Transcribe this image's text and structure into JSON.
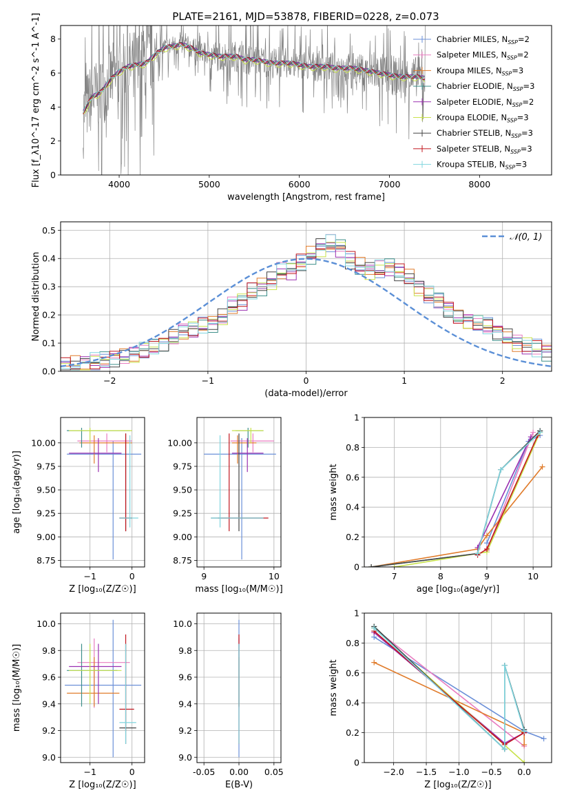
{
  "figure": {
    "title": "PLATE=2161, MJD=53878, FIBERID=0228, z=0.073"
  },
  "models": [
    {
      "name": "Chabrier MILES, N$_{SSP}$=2",
      "label": "Chabrier MILES, N",
      "sub": "SSP",
      "tail": "=2",
      "color": "#6a8fd8"
    },
    {
      "name": "Salpeter MILES, N$_{SSP}$=2",
      "label": "Salpeter MILES, N",
      "sub": "SSP",
      "tail": "=2",
      "color": "#e87bc0"
    },
    {
      "name": "Kroupa MILES, N$_{SSP}$=3",
      "label": "Kroupa MILES, N",
      "sub": "SSP",
      "tail": "=3",
      "color": "#e07b2a"
    },
    {
      "name": "Chabrier ELODIE, N$_{SSP}$=3",
      "label": "Chabrier ELODIE, N",
      "sub": "SSP",
      "tail": "=3",
      "color": "#3d8f8a"
    },
    {
      "name": "Salpeter ELODIE, N$_{SSP}$=2",
      "label": "Salpeter ELODIE, N",
      "sub": "SSP",
      "tail": "=2",
      "color": "#9a2fb0"
    },
    {
      "name": "Kroupa ELODIE, N$_{SSP}$=3",
      "label": "Kroupa ELODIE, N",
      "sub": "SSP",
      "tail": "=3",
      "color": "#c8e24a"
    },
    {
      "name": "Chabrier STELIB, N$_{SSP}$=3",
      "label": "Chabrier STELIB, N",
      "sub": "SSP",
      "tail": "=3",
      "color": "#444444"
    },
    {
      "name": "Salpeter STELIB, N$_{SSP}$=3",
      "label": "Salpeter STELIB, N",
      "sub": "SSP",
      "tail": "=3",
      "color": "#c0141c"
    },
    {
      "name": "Kroupa STELIB, N$_{SSP}$=3",
      "label": "Kroupa STELIB, N",
      "sub": "SSP",
      "tail": "=3",
      "color": "#7fd4de"
    }
  ],
  "chart_data": [
    {
      "id": "spectrum",
      "type": "line",
      "xlabel": "wavelength [Angstrom, rest frame]",
      "ylabel": "Flux [f_λ10^-17 erg cm^-2 s^-1 A^-1]",
      "xlim": [
        3350,
        8800
      ],
      "ylim": [
        0,
        8.8
      ],
      "xticks": [
        4000,
        5000,
        6000,
        7000,
        8000
      ],
      "yticks": [
        0,
        2,
        4,
        6,
        8
      ],
      "grid": false,
      "legend": "top-right",
      "data_color": "#808080",
      "x": [
        3600,
        3700,
        3800,
        3900,
        4000,
        4100,
        4200,
        4300,
        4400,
        4500,
        4600,
        4700,
        4800,
        4900,
        5000,
        5100,
        5200,
        5300,
        5400,
        5500,
        5600,
        5700,
        5800,
        5900,
        6000,
        6100,
        6200,
        6300,
        6400,
        6500,
        6600,
        6700,
        6800,
        6900,
        7000,
        7100,
        7200,
        7300,
        7400
      ],
      "model_flux": [
        3.7,
        4.6,
        4.9,
        5.6,
        6.1,
        6.4,
        6.5,
        6.6,
        7.1,
        7.5,
        7.6,
        7.7,
        7.5,
        7.2,
        7.1,
        7.0,
        7.0,
        7.0,
        6.8,
        6.8,
        6.7,
        6.6,
        6.6,
        6.6,
        6.5,
        6.4,
        6.4,
        6.4,
        6.3,
        6.3,
        6.3,
        6.2,
        6.1,
        6.0,
        5.9,
        5.8,
        5.8,
        5.8,
        5.7
      ]
    },
    {
      "id": "residuals",
      "type": "step",
      "xlabel": "(data-model)/error",
      "ylabel": "Normed distribution",
      "xlim": [
        -2.5,
        2.5
      ],
      "ylim": [
        0,
        0.53
      ],
      "xticks": [
        -2,
        -1,
        0,
        1,
        2
      ],
      "yticks": [
        0.0,
        0.1,
        0.2,
        0.3,
        0.4,
        0.5
      ],
      "grid": true,
      "legend": "top-right",
      "gaussian_label": "𝒩(0, 1)",
      "gaussian_color": "#5b8fd6",
      "bin_width": 0.1,
      "bin_start": -2.5,
      "density": [
        0.018,
        0.022,
        0.028,
        0.033,
        0.038,
        0.047,
        0.052,
        0.06,
        0.075,
        0.085,
        0.1,
        0.12,
        0.14,
        0.15,
        0.16,
        0.17,
        0.19,
        0.23,
        0.25,
        0.28,
        0.3,
        0.32,
        0.35,
        0.36,
        0.38,
        0.41,
        0.44,
        0.45,
        0.44,
        0.39,
        0.37,
        0.36,
        0.36,
        0.37,
        0.35,
        0.33,
        0.3,
        0.27,
        0.25,
        0.22,
        0.19,
        0.18,
        0.17,
        0.16,
        0.14,
        0.12,
        0.1,
        0.09,
        0.08,
        0.07,
        0.06,
        0.05,
        0.045,
        0.04,
        0.037,
        0.033,
        0.03,
        0.028,
        0.026,
        0.024
      ]
    },
    {
      "id": "age_vs_Z",
      "type": "errorbar",
      "xlabel": "Z [log₁₀(Z/Z☉)]",
      "ylabel": "age  [log₁₀(age/yr)]",
      "xlim": [
        -1.7,
        0.3
      ],
      "ylim": [
        8.68,
        10.27
      ],
      "xticks": [
        -1,
        0
      ],
      "yticks": [
        8.75,
        9.0,
        9.25,
        9.5,
        9.75,
        10.0
      ],
      "yticklabels": [
        "8.75",
        "9.00",
        "9.25",
        "9.50",
        "9.75",
        "10.00"
      ],
      "grid": true,
      "points": [
        {
          "m": 0,
          "x": -0.45,
          "y": 9.88,
          "xe": [
            -1.55,
            0.22
          ],
          "ye": [
            8.76,
            10.02
          ]
        },
        {
          "m": 1,
          "x": -0.6,
          "y": 10.02,
          "xe": [
            -1.3,
            0.0
          ],
          "ye": [
            9.9,
            10.1
          ]
        },
        {
          "m": 2,
          "x": -0.9,
          "y": 10.0,
          "xe": [
            -1.25,
            0.0
          ],
          "ye": [
            9.78,
            10.08
          ]
        },
        {
          "m": 3,
          "x": -1.2,
          "y": 10.13,
          "xe": [
            -1.55,
            -0.05
          ],
          "ye": [
            9.95,
            10.16
          ]
        },
        {
          "m": 4,
          "x": -0.8,
          "y": 9.89,
          "xe": [
            -1.5,
            -0.25
          ],
          "ye": [
            9.69,
            10.05
          ]
        },
        {
          "m": 5,
          "x": -1.0,
          "y": 10.13,
          "xe": [
            -1.5,
            0.0
          ],
          "ye": [
            10.0,
            10.16
          ]
        },
        {
          "m": 6,
          "x": -0.15,
          "y": 9.2,
          "xe": [
            -0.3,
            0.0
          ],
          "ye": [
            9.06,
            10.1
          ]
        },
        {
          "m": 7,
          "x": -0.15,
          "y": 9.2,
          "xe": [
            -0.3,
            0.0
          ],
          "ye": [
            9.06,
            10.1
          ]
        },
        {
          "m": 8,
          "x": -0.05,
          "y": 9.2,
          "xe": [
            -0.3,
            0.15
          ],
          "ye": [
            9.1,
            10.08
          ]
        }
      ]
    },
    {
      "id": "age_vs_mass",
      "type": "errorbar",
      "xlabel": "mass [log₁₀(M/M☉)]",
      "ylabel": "",
      "xlim": [
        8.9,
        10.1
      ],
      "ylim": [
        8.68,
        10.27
      ],
      "xticks": [
        9,
        10
      ],
      "yticks": [
        8.75,
        9.0,
        9.25,
        9.5,
        9.75,
        10.0
      ],
      "yticklabels": [
        "8.75",
        "9.00",
        "9.25",
        "9.50",
        "9.75",
        "10.00"
      ],
      "grid": true,
      "points": [
        {
          "m": 0,
          "x": 9.54,
          "y": 9.88,
          "xe": [
            9.0,
            10.03
          ],
          "ye": [
            8.76,
            10.05
          ]
        },
        {
          "m": 1,
          "x": 9.7,
          "y": 10.02,
          "xe": [
            9.38,
            10.0
          ],
          "ye": [
            9.9,
            10.1
          ]
        },
        {
          "m": 2,
          "x": 9.48,
          "y": 10.0,
          "xe": [
            9.4,
            9.75
          ],
          "ye": [
            9.78,
            10.08
          ]
        },
        {
          "m": 3,
          "x": 9.63,
          "y": 10.13,
          "xe": [
            9.45,
            9.85
          ],
          "ye": [
            9.95,
            10.16
          ]
        },
        {
          "m": 4,
          "x": 9.62,
          "y": 9.89,
          "xe": [
            9.4,
            9.85
          ],
          "ye": [
            9.69,
            10.05
          ]
        },
        {
          "m": 5,
          "x": 9.67,
          "y": 10.13,
          "xe": [
            9.4,
            9.85
          ],
          "ye": [
            10.0,
            10.16
          ]
        },
        {
          "m": 6,
          "x": 9.5,
          "y": 9.2,
          "xe": [
            9.1,
            9.85
          ],
          "ye": [
            9.06,
            10.1
          ]
        },
        {
          "m": 7,
          "x": 9.36,
          "y": 9.2,
          "xe": [
            9.2,
            9.92
          ],
          "ye": [
            9.06,
            10.1
          ]
        },
        {
          "m": 8,
          "x": 9.23,
          "y": 9.2,
          "xe": [
            9.1,
            9.85
          ],
          "ye": [
            9.1,
            10.08
          ]
        }
      ]
    },
    {
      "id": "massweight_vs_age",
      "type": "line",
      "xlabel": "age  [log₁₀(age/yr)]",
      "ylabel": "mass weight",
      "xlim": [
        6.35,
        10.4
      ],
      "ylim": [
        0,
        1
      ],
      "xticks": [
        7,
        8,
        9,
        10
      ],
      "yticks": [
        0.0,
        0.2,
        0.4,
        0.6,
        0.8,
        1.0
      ],
      "grid": true,
      "series": [
        {
          "m": 0,
          "x": [
            9.0,
            9.9,
            10.15
          ],
          "y": [
            0.16,
            0.84,
            0.88
          ]
        },
        {
          "m": 1,
          "x": [
            9.0,
            10.0
          ],
          "y": [
            0.11,
            0.9
          ]
        },
        {
          "m": 2,
          "x": [
            6.5,
            8.8,
            9.0,
            10.2
          ],
          "y": [
            0.0,
            0.12,
            0.21,
            0.67
          ]
        },
        {
          "m": 3,
          "x": [
            6.5,
            8.8,
            9.3,
            10.15
          ],
          "y": [
            0.0,
            0.09,
            0.65,
            0.91
          ]
        },
        {
          "m": 4,
          "x": [
            8.8,
            9.95
          ],
          "y": [
            0.13,
            0.87
          ]
        },
        {
          "m": 5,
          "x": [
            7.0,
            9.0,
            10.15
          ],
          "y": [
            0.0,
            0.1,
            0.9
          ]
        },
        {
          "m": 6,
          "x": [
            6.5,
            8.8,
            9.3,
            10.15
          ],
          "y": [
            0.0,
            0.09,
            0.65,
            0.91
          ]
        },
        {
          "m": 7,
          "x": [
            8.8,
            9.0,
            10.1
          ],
          "y": [
            0.08,
            0.12,
            0.88
          ]
        },
        {
          "m": 8,
          "x": [
            8.8,
            9.3,
            10.15
          ],
          "y": [
            0.09,
            0.65,
            0.9
          ]
        }
      ]
    },
    {
      "id": "mass_vs_Z",
      "type": "errorbar",
      "xlabel": "Z [log₁₀(Z/Z☉)]",
      "ylabel": "mass [log₁₀(M/M☉)]",
      "xlim": [
        -1.7,
        0.3
      ],
      "ylim": [
        8.96,
        10.08
      ],
      "xticks": [
        -1,
        0
      ],
      "yticks": [
        9.0,
        9.2,
        9.4,
        9.6,
        9.8,
        10.0
      ],
      "yticklabels": [
        "9.0",
        "9.2",
        "9.4",
        "9.6",
        "9.8",
        "10.0"
      ],
      "grid": true,
      "points": [
        {
          "m": 0,
          "x": -0.45,
          "y": 9.54,
          "xe": [
            -1.6,
            0.22
          ],
          "ye": [
            9.0,
            10.03
          ]
        },
        {
          "m": 1,
          "x": -0.9,
          "y": 9.71,
          "xe": [
            -1.3,
            -0.05
          ],
          "ye": [
            9.37,
            9.89
          ]
        },
        {
          "m": 2,
          "x": -0.9,
          "y": 9.48,
          "xe": [
            -1.55,
            -0.3
          ],
          "ye": [
            9.38,
            9.75
          ]
        },
        {
          "m": 3,
          "x": -1.2,
          "y": 9.65,
          "xe": [
            -1.55,
            -0.35
          ],
          "ye": [
            9.38,
            9.85
          ]
        },
        {
          "m": 4,
          "x": -0.8,
          "y": 9.68,
          "xe": [
            -1.5,
            -0.25
          ],
          "ye": [
            9.4,
            9.85
          ]
        },
        {
          "m": 5,
          "x": -1.0,
          "y": 9.65,
          "xe": [
            -1.5,
            -0.25
          ],
          "ye": [
            9.4,
            9.85
          ]
        },
        {
          "m": 6,
          "x": -0.15,
          "y": 9.22,
          "xe": [
            -0.3,
            0.1
          ],
          "ye": [
            9.1,
            9.85
          ]
        },
        {
          "m": 7,
          "x": -0.15,
          "y": 9.36,
          "xe": [
            -0.3,
            0.05
          ],
          "ye": [
            9.2,
            9.92
          ]
        },
        {
          "m": 8,
          "x": -0.15,
          "y": 9.26,
          "xe": [
            -0.3,
            0.1
          ],
          "ye": [
            9.1,
            9.85
          ]
        }
      ]
    },
    {
      "id": "mass_vs_ebv",
      "type": "errorbar",
      "xlabel": "E(B-V)",
      "ylabel": "",
      "xlim": [
        -0.06,
        0.06
      ],
      "ylim": [
        8.96,
        10.08
      ],
      "xticks": [
        -0.05,
        0.0,
        0.05
      ],
      "xticklabels": [
        "-0.05",
        "0.00",
        "0.05"
      ],
      "yticks": [
        9.0,
        9.2,
        9.4,
        9.6,
        9.8,
        10.0
      ],
      "yticklabels": [
        "9.0",
        "9.2",
        "9.4",
        "9.6",
        "9.8",
        "10.0"
      ],
      "grid": true,
      "points": [
        {
          "m": 0,
          "x": 0.0,
          "y": 9.54,
          "xe": [
            0,
            0
          ],
          "ye": [
            9.0,
            10.03
          ]
        },
        {
          "m": 1,
          "x": 0.0,
          "y": 9.71,
          "xe": [
            0,
            0
          ],
          "ye": [
            9.37,
            9.89
          ]
        },
        {
          "m": 2,
          "x": 0.0,
          "y": 9.48,
          "xe": [
            0,
            0
          ],
          "ye": [
            9.38,
            9.75
          ]
        },
        {
          "m": 3,
          "x": 0.0,
          "y": 9.65,
          "xe": [
            0,
            0
          ],
          "ye": [
            9.38,
            9.85
          ]
        },
        {
          "m": 7,
          "x": 0.0,
          "y": 9.36,
          "xe": [
            0,
            0
          ],
          "ye": [
            9.1,
            9.92
          ]
        },
        {
          "m": 8,
          "x": 0.0,
          "y": 9.26,
          "xe": [
            0,
            0
          ],
          "ye": [
            9.1,
            9.85
          ]
        }
      ]
    },
    {
      "id": "massweight_vs_Z",
      "type": "line",
      "xlabel": "Z [log₁₀(Z/Z☉)]",
      "ylabel": "mass weight",
      "xlim": [
        -2.45,
        0.42
      ],
      "ylim": [
        0,
        1
      ],
      "xticks": [
        -2.0,
        -1.5,
        -1.0,
        -0.5,
        0.0
      ],
      "xticklabels": [
        "−2.0",
        "−1.5",
        "−1.0",
        "−0.5",
        "0.0"
      ],
      "yticks": [
        0.0,
        0.2,
        0.4,
        0.6,
        0.8,
        1.0
      ],
      "grid": true,
      "series": [
        {
          "m": 0,
          "x": [
            -2.3,
            0.0,
            0.3
          ],
          "y": [
            0.84,
            0.21,
            0.16
          ]
        },
        {
          "m": 1,
          "x": [
            -2.3,
            0.0
          ],
          "y": [
            0.9,
            0.11
          ]
        },
        {
          "m": 2,
          "x": [
            -2.3,
            0.0,
            0.0
          ],
          "y": [
            0.67,
            0.2,
            0.12
          ]
        },
        {
          "m": 3,
          "x": [
            -2.3,
            -0.3,
            -0.3,
            0.0
          ],
          "y": [
            0.91,
            0.09,
            0.65,
            0.22
          ]
        },
        {
          "m": 4,
          "x": [
            -2.3,
            -0.3,
            0.0
          ],
          "y": [
            0.87,
            0.13,
            0.2
          ]
        },
        {
          "m": 5,
          "x": [
            -2.3,
            0.0
          ],
          "y": [
            0.9,
            0.0
          ]
        },
        {
          "m": 6,
          "x": [
            -2.3,
            -0.3,
            -0.3,
            0.0
          ],
          "y": [
            0.91,
            0.09,
            0.65,
            0.22
          ]
        },
        {
          "m": 7,
          "x": [
            -2.3,
            -0.3,
            0.0
          ],
          "y": [
            0.88,
            0.12,
            0.2
          ]
        },
        {
          "m": 8,
          "x": [
            -2.3,
            -0.3,
            -0.3,
            0.0
          ],
          "y": [
            0.9,
            0.09,
            0.65,
            0.21
          ]
        }
      ]
    }
  ]
}
